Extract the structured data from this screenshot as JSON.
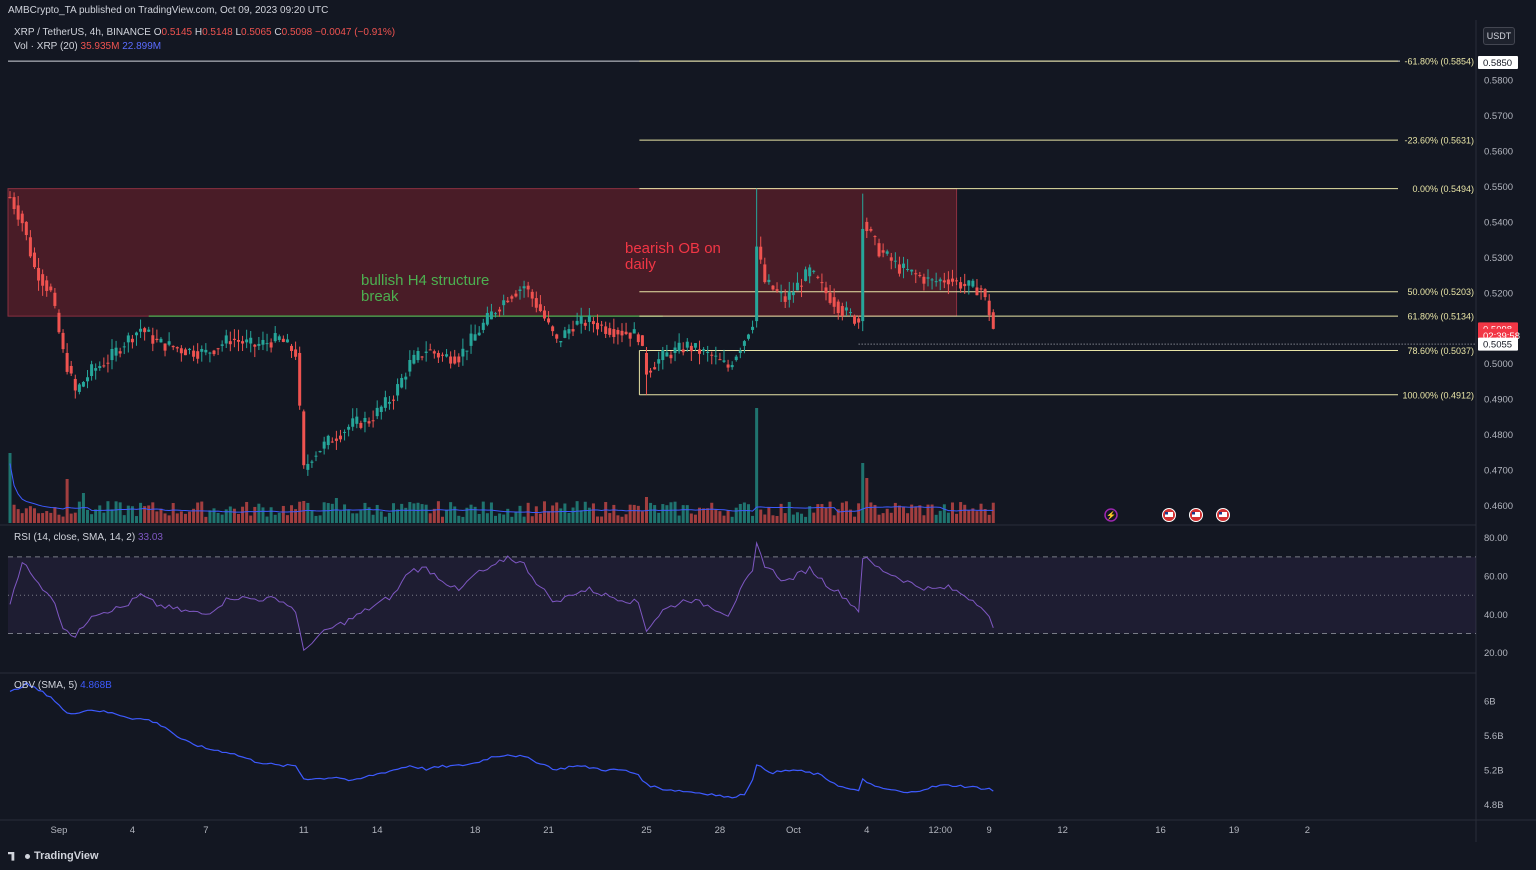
{
  "publish_line": "AMBCrypto_TA published on TradingView.com, Oct 09, 2023 09:20 UTC",
  "symbol": {
    "name": "XRP / TetherUS, 4h, BINANCE",
    "o_label": "O",
    "o": "0.5145",
    "h_label": "H",
    "h": "0.5148",
    "l_label": "L",
    "l": "0.5065",
    "c_label": "C",
    "c": "0.5098",
    "change": "−0.0047 (−0.91%)"
  },
  "volume": {
    "label": "Vol · XRP (20)",
    "v1": "35.935M",
    "v2": "22.899M"
  },
  "rsi": {
    "label": "RSI (14, close, SMA, 14, 2)",
    "value": "33.03"
  },
  "obv": {
    "label": "OBV (SMA, 5)",
    "value": "4.868B"
  },
  "currency": "USDT",
  "annotations": {
    "bullish": "bullish H4 structure break",
    "bearish": "bearish OB on daily"
  },
  "branding": "TradingView",
  "colors": {
    "up": "#26a69a",
    "down": "#ef5350",
    "fib": "#e8e4a6",
    "zone": "#5c1f2a",
    "rsi": "#7e57c2",
    "obv": "#3d5afe"
  },
  "chart_data": [
    {
      "type": "candlestick",
      "title": "XRP / TetherUS, 4h, BINANCE",
      "ylim": [
        0.455,
        0.597
      ],
      "y_ticks": [
        "0.5800",
        "0.5700",
        "0.5600",
        "0.5500",
        "0.5400",
        "0.5300",
        "0.5200",
        "0.5100",
        "0.5000",
        "0.4900",
        "0.4800",
        "0.4700",
        "0.4600"
      ],
      "x_ticks": [
        {
          "label": "Sep",
          "bar": 12
        },
        {
          "label": "4",
          "bar": 30
        },
        {
          "label": "7",
          "bar": 48
        },
        {
          "label": "11",
          "bar": 72
        },
        {
          "label": "14",
          "bar": 90
        },
        {
          "label": "18",
          "bar": 114
        },
        {
          "label": "21",
          "bar": 132
        },
        {
          "label": "25",
          "bar": 156
        },
        {
          "label": "28",
          "bar": 174
        },
        {
          "label": "Oct",
          "bar": 192
        },
        {
          "label": "4",
          "bar": 210
        },
        {
          "label": "12:00",
          "bar": 228
        },
        {
          "label": "9",
          "bar": 240
        },
        {
          "label": "12",
          "bar": 258
        },
        {
          "label": "16",
          "bar": 282
        },
        {
          "label": "19",
          "bar": 300
        },
        {
          "label": "2",
          "bar": 318
        }
      ],
      "price_keypoints": [
        [
          0,
          0.547
        ],
        [
          3,
          0.54
        ],
        [
          6,
          0.527
        ],
        [
          10,
          0.52
        ],
        [
          13,
          0.503
        ],
        [
          16,
          0.492
        ],
        [
          20,
          0.498
        ],
        [
          24,
          0.501
        ],
        [
          28,
          0.506
        ],
        [
          32,
          0.51
        ],
        [
          36,
          0.506
        ],
        [
          42,
          0.504
        ],
        [
          48,
          0.503
        ],
        [
          54,
          0.507
        ],
        [
          60,
          0.505
        ],
        [
          66,
          0.507
        ],
        [
          70,
          0.503
        ],
        [
          72,
          0.47
        ],
        [
          74,
          0.474
        ],
        [
          78,
          0.478
        ],
        [
          84,
          0.483
        ],
        [
          88,
          0.484
        ],
        [
          94,
          0.491
        ],
        [
          98,
          0.5
        ],
        [
          102,
          0.504
        ],
        [
          106,
          0.502
        ],
        [
          110,
          0.502
        ],
        [
          114,
          0.508
        ],
        [
          118,
          0.514
        ],
        [
          122,
          0.519
        ],
        [
          126,
          0.522
        ],
        [
          130,
          0.515
        ],
        [
          134,
          0.506
        ],
        [
          138,
          0.511
        ],
        [
          142,
          0.512
        ],
        [
          146,
          0.51
        ],
        [
          150,
          0.509
        ],
        [
          154,
          0.508
        ],
        [
          156,
          0.498
        ],
        [
          160,
          0.502
        ],
        [
          166,
          0.505
        ],
        [
          172,
          0.502
        ],
        [
          176,
          0.499
        ],
        [
          180,
          0.507
        ],
        [
          182,
          0.512
        ],
        [
          183,
          0.533
        ],
        [
          185,
          0.523
        ],
        [
          190,
          0.518
        ],
        [
          196,
          0.526
        ],
        [
          200,
          0.52
        ],
        [
          204,
          0.515
        ],
        [
          208,
          0.512
        ],
        [
          209,
          0.54
        ],
        [
          213,
          0.532
        ],
        [
          218,
          0.527
        ],
        [
          222,
          0.525
        ],
        [
          226,
          0.523
        ],
        [
          230,
          0.524
        ],
        [
          234,
          0.522
        ],
        [
          238,
          0.521
        ],
        [
          240,
          0.5145
        ],
        [
          241,
          0.5098
        ]
      ],
      "high_low_marks": {
        "high_bar": 183,
        "high": 0.5494,
        "low_bar": 156,
        "low": 0.4912
      },
      "order_block": {
        "label": "bearish OB on daily",
        "top": 0.5494,
        "bottom": 0.5134,
        "start_bar": 0,
        "end_bar": 232
      },
      "structure_break": {
        "label": "bullish H4 structure break",
        "price": 0.5134,
        "start_bar": 34,
        "end_bar": 160
      },
      "fibonacci": {
        "start_bar": 155,
        "levels": [
          {
            "label": "-61.80% (0.5854)",
            "price": 0.5854
          },
          {
            "label": "-23.60% (0.5631)",
            "price": 0.5631
          },
          {
            "label": "0.00% (0.5494)",
            "price": 0.5494
          },
          {
            "label": "50.00% (0.5203)",
            "price": 0.5203
          },
          {
            "label": "61.80% (0.5134)",
            "price": 0.5134
          },
          {
            "label": "78.60% (0.5037)",
            "price": 0.5037
          },
          {
            "label": "100.00% (0.4912)",
            "price": 0.4912
          }
        ]
      },
      "price_labels": [
        {
          "text": "0.5850",
          "price": 0.585,
          "style": "white"
        },
        {
          "text": "0.5098",
          "price": 0.5098,
          "style": "red"
        },
        {
          "text": "02:39:58",
          "price": 0.508,
          "style": "red"
        },
        {
          "text": "0.5055",
          "price": 0.5055,
          "style": "white"
        }
      ]
    },
    {
      "type": "bar",
      "title": "Vol · XRP (20)",
      "spikes": [
        [
          0,
          70
        ],
        [
          14,
          44
        ],
        [
          18,
          30
        ],
        [
          72,
          22
        ],
        [
          80,
          25
        ],
        [
          183,
          115
        ],
        [
          209,
          60
        ],
        [
          210,
          45
        ],
        [
          156,
          26
        ]
      ]
    },
    {
      "type": "line",
      "title": "RSI (14, close, SMA, 14, 2)",
      "ylim": [
        12,
        83
      ],
      "y_ticks": [
        "80.00",
        "60.00",
        "40.00",
        "20.00"
      ],
      "bands": [
        70,
        50,
        30
      ],
      "keypoints": [
        [
          0,
          46
        ],
        [
          3,
          68
        ],
        [
          6,
          58
        ],
        [
          10,
          50
        ],
        [
          13,
          34
        ],
        [
          16,
          28
        ],
        [
          20,
          40
        ],
        [
          24,
          42
        ],
        [
          28,
          44
        ],
        [
          32,
          50
        ],
        [
          36,
          45
        ],
        [
          42,
          42
        ],
        [
          48,
          40
        ],
        [
          54,
          49
        ],
        [
          60,
          48
        ],
        [
          66,
          48
        ],
        [
          70,
          42
        ],
        [
          72,
          20
        ],
        [
          74,
          26
        ],
        [
          78,
          32
        ],
        [
          84,
          38
        ],
        [
          88,
          43
        ],
        [
          94,
          50
        ],
        [
          98,
          63
        ],
        [
          102,
          64
        ],
        [
          106,
          58
        ],
        [
          110,
          52
        ],
        [
          114,
          61
        ],
        [
          118,
          64
        ],
        [
          122,
          70
        ],
        [
          126,
          66
        ],
        [
          130,
          54
        ],
        [
          134,
          46
        ],
        [
          138,
          51
        ],
        [
          142,
          53
        ],
        [
          146,
          50
        ],
        [
          150,
          48
        ],
        [
          154,
          46
        ],
        [
          156,
          32
        ],
        [
          160,
          42
        ],
        [
          166,
          48
        ],
        [
          172,
          44
        ],
        [
          176,
          40
        ],
        [
          180,
          56
        ],
        [
          182,
          62
        ],
        [
          183,
          76
        ],
        [
          185,
          66
        ],
        [
          190,
          57
        ],
        [
          196,
          64
        ],
        [
          200,
          56
        ],
        [
          204,
          50
        ],
        [
          208,
          42
        ],
        [
          209,
          70
        ],
        [
          213,
          64
        ],
        [
          218,
          59
        ],
        [
          222,
          55
        ],
        [
          226,
          53
        ],
        [
          230,
          54
        ],
        [
          234,
          50
        ],
        [
          238,
          45
        ],
        [
          240,
          38
        ],
        [
          241,
          33
        ]
      ]
    },
    {
      "type": "line",
      "title": "OBV (SMA, 5)",
      "y_ticks": [
        "6B",
        "5.6B",
        "5.2B",
        "4.8B"
      ],
      "keypoints": [
        [
          0,
          6.1
        ],
        [
          4,
          6.2
        ],
        [
          10,
          6.05
        ],
        [
          14,
          5.85
        ],
        [
          20,
          5.9
        ],
        [
          26,
          5.85
        ],
        [
          30,
          5.8
        ],
        [
          34,
          5.78
        ],
        [
          38,
          5.7
        ],
        [
          42,
          5.55
        ],
        [
          48,
          5.45
        ],
        [
          54,
          5.4
        ],
        [
          60,
          5.3
        ],
        [
          66,
          5.25
        ],
        [
          70,
          5.25
        ],
        [
          72,
          5.1
        ],
        [
          76,
          5.1
        ],
        [
          80,
          5.12
        ],
        [
          84,
          5.07
        ],
        [
          88,
          5.13
        ],
        [
          94,
          5.2
        ],
        [
          98,
          5.25
        ],
        [
          102,
          5.21
        ],
        [
          106,
          5.24
        ],
        [
          110,
          5.25
        ],
        [
          114,
          5.28
        ],
        [
          118,
          5.35
        ],
        [
          122,
          5.38
        ],
        [
          126,
          5.35
        ],
        [
          130,
          5.28
        ],
        [
          134,
          5.2
        ],
        [
          138,
          5.25
        ],
        [
          142,
          5.23
        ],
        [
          146,
          5.2
        ],
        [
          150,
          5.2
        ],
        [
          154,
          5.15
        ],
        [
          156,
          5.03
        ],
        [
          160,
          4.98
        ],
        [
          166,
          4.95
        ],
        [
          172,
          4.92
        ],
        [
          176,
          4.88
        ],
        [
          180,
          4.92
        ],
        [
          182,
          5.1
        ],
        [
          183,
          5.25
        ],
        [
          187,
          5.17
        ],
        [
          192,
          5.2
        ],
        [
          198,
          5.15
        ],
        [
          204,
          5.0
        ],
        [
          208,
          4.95
        ],
        [
          209,
          5.1
        ],
        [
          212,
          5.0
        ],
        [
          216,
          4.97
        ],
        [
          220,
          4.93
        ],
        [
          224,
          4.98
        ],
        [
          228,
          5.02
        ],
        [
          232,
          5.02
        ],
        [
          236,
          5.0
        ],
        [
          240,
          4.98
        ],
        [
          241,
          4.96
        ]
      ]
    }
  ]
}
